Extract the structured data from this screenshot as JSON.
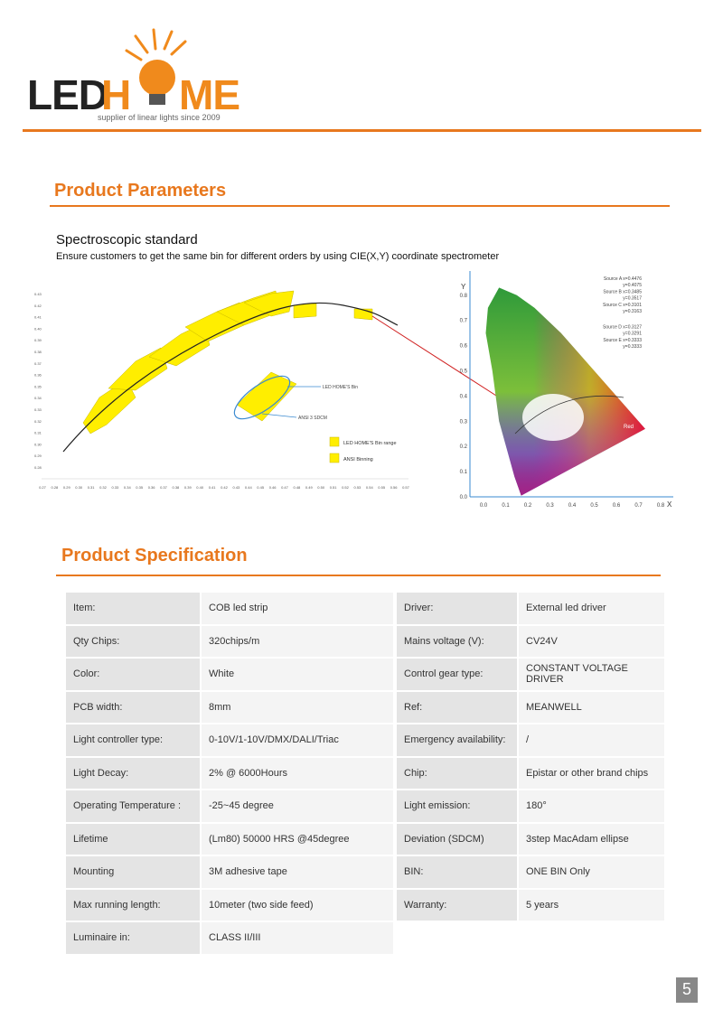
{
  "header": {
    "logo_left": "LED",
    "logo_h": "H",
    "logo_right": "ME",
    "tagline": "supplier of linear lights since 2009"
  },
  "parameters": {
    "title": "Product Parameters",
    "subtitle": "Spectroscopic standard",
    "description": "Ensure customers to get the same bin for different orders by using CIE(X,Y) coordinate spectrometer"
  },
  "bin_chart": {
    "xticks": [
      "0.27",
      "0.28",
      "0.29",
      "0.30",
      "0.31",
      "0.32",
      "0.33",
      "0.34",
      "0.35",
      "0.36",
      "0.37",
      "0.38",
      "0.39",
      "0.40",
      "0.41",
      "0.42",
      "0.43",
      "0.44",
      "0.45",
      "0.46",
      "0.47",
      "0.48",
      "0.49",
      "0.50",
      "0.51",
      "0.52",
      "0.53",
      "0.54",
      "0.55",
      "0.56",
      "0.57"
    ],
    "yticks": [
      "0.43",
      "0.42",
      "0.41",
      "0.40",
      "0.39",
      "0.38",
      "0.37",
      "0.36",
      "0.35",
      "0.34",
      "0.33",
      "0.32",
      "0.31",
      "0.30",
      "0.29",
      "0.28"
    ],
    "bin_label": "LED HOME'S Bin",
    "sdcm_label": "ANSI 3 SDCM",
    "legend": [
      "LED HOME'S Bin range",
      "ANSI Binning"
    ]
  },
  "cie_chart": {
    "x_axis": "X",
    "y_axis": "Y",
    "xticks": [
      "0.0",
      "0.1",
      "0.2",
      "0.3",
      "0.4",
      "0.5",
      "0.6",
      "0.7",
      "0.8"
    ],
    "yticks": [
      "0.0",
      "0.1",
      "0.2",
      "0.3",
      "0.4",
      "0.5",
      "0.6",
      "0.7",
      "0.8"
    ],
    "sources": [
      [
        "Source A x=0.4476",
        "y=0.4075"
      ],
      [
        "Source B x=0.3485",
        "y=0.3517"
      ],
      [
        "Source C x=0.3101",
        "y=0.3163"
      ],
      [
        "Source D x=0.3127",
        "y=0.3291"
      ],
      [
        "Source E x=0.3333",
        "y=0.3333"
      ]
    ],
    "region_label": "Red"
  },
  "specification": {
    "title": "Product Specification",
    "left_rows": [
      [
        "Item:",
        "COB led strip"
      ],
      [
        "Qty Chips:",
        "320chips/m"
      ],
      [
        "Color:",
        "White"
      ],
      [
        "PCB width:",
        "8mm"
      ],
      [
        "Light controller type:",
        "0-10V/1-10V/DMX/DALI/Triac"
      ],
      [
        "Light Decay:",
        "2% @ 6000Hours"
      ],
      [
        "Operating Temperature :",
        "-25~45 degree"
      ],
      [
        "Lifetime",
        "(Lm80) 50000 HRS @45degree"
      ],
      [
        "Mounting",
        "3M adhesive tape"
      ],
      [
        "Max running length:",
        "10meter (two side feed)"
      ],
      [
        "Luminaire in:",
        "CLASS II/III"
      ]
    ],
    "right_rows": [
      [
        "Driver:",
        "External  led driver"
      ],
      [
        "Mains voltage (V):",
        "CV24V"
      ],
      [
        "Control gear type:",
        "CONSTANT VOLTAGE DRIVER"
      ],
      [
        "Ref:",
        "MEANWELL"
      ],
      [
        "Emergency availability:",
        "/"
      ],
      [
        "Chip:",
        "Epistar or other brand chips"
      ],
      [
        "Light emission:",
        "180°"
      ],
      [
        "Deviation (SDCM)",
        "3step MacAdam ellipse"
      ],
      [
        "BIN:",
        "ONE BIN Only"
      ],
      [
        "Warranty:",
        "5 years"
      ]
    ]
  },
  "page_number": "5"
}
